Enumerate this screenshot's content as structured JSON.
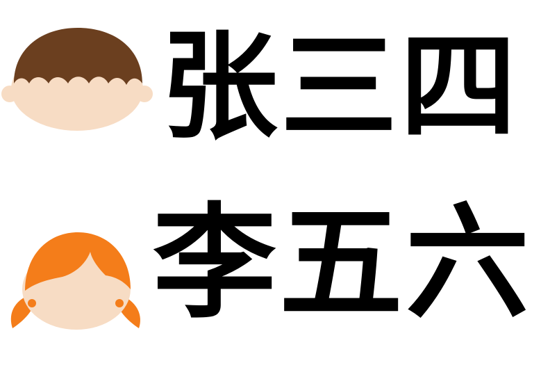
{
  "people": [
    {
      "name": "张三四",
      "avatar": {
        "icon": "boy-face-icon",
        "hair_color": "#6b3f1f",
        "skin_color": "#f7dcc4"
      }
    },
    {
      "name": "李五六",
      "avatar": {
        "icon": "girl-face-icon",
        "hair_color": "#f47d1a",
        "skin_color": "#f7dcc4"
      }
    }
  ]
}
